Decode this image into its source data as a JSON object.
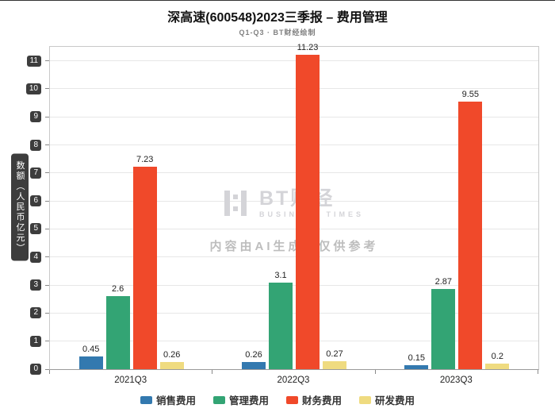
{
  "header": {
    "title": "深高速(600548)2023三季报 – 费用管理",
    "subtitle": "Q1-Q3 · BT财经绘制"
  },
  "chart_data": {
    "type": "bar",
    "title": "深高速(600548)2023三季报 – 费用管理",
    "subtitle": "Q1-Q3 · BT财经绘制",
    "xlabel": "",
    "ylabel": "数额（人民币亿元）",
    "categories": [
      "2021Q3",
      "2022Q3",
      "2023Q3"
    ],
    "series": [
      {
        "name": "销售费用",
        "color": "#3379af",
        "values": [
          0.45,
          0.26,
          0.15
        ]
      },
      {
        "name": "管理费用",
        "color": "#33a474",
        "values": [
          2.6,
          3.1,
          2.87
        ]
      },
      {
        "name": "财务费用",
        "color": "#f0492a",
        "values": [
          7.23,
          11.23,
          9.55
        ]
      },
      {
        "name": "研发费用",
        "color": "#efdb80",
        "values": [
          0.26,
          0.27,
          0.2
        ]
      }
    ],
    "ylim": [
      0,
      11.5
    ],
    "yticks": [
      0,
      1,
      2,
      3,
      4,
      5,
      6,
      7,
      8,
      9,
      10,
      11
    ],
    "grid": true,
    "legend_position": "bottom"
  },
  "watermark": {
    "brand": "BT财经",
    "brand_sub": "BUSINESS TIMES",
    "disclaimer": "内容由AI生成，仅供参考"
  },
  "colors": {
    "axis_badge_bg": "#3d3d3d",
    "axis_badge_text": "#ffffff",
    "gridline": "#e7e7e7"
  }
}
